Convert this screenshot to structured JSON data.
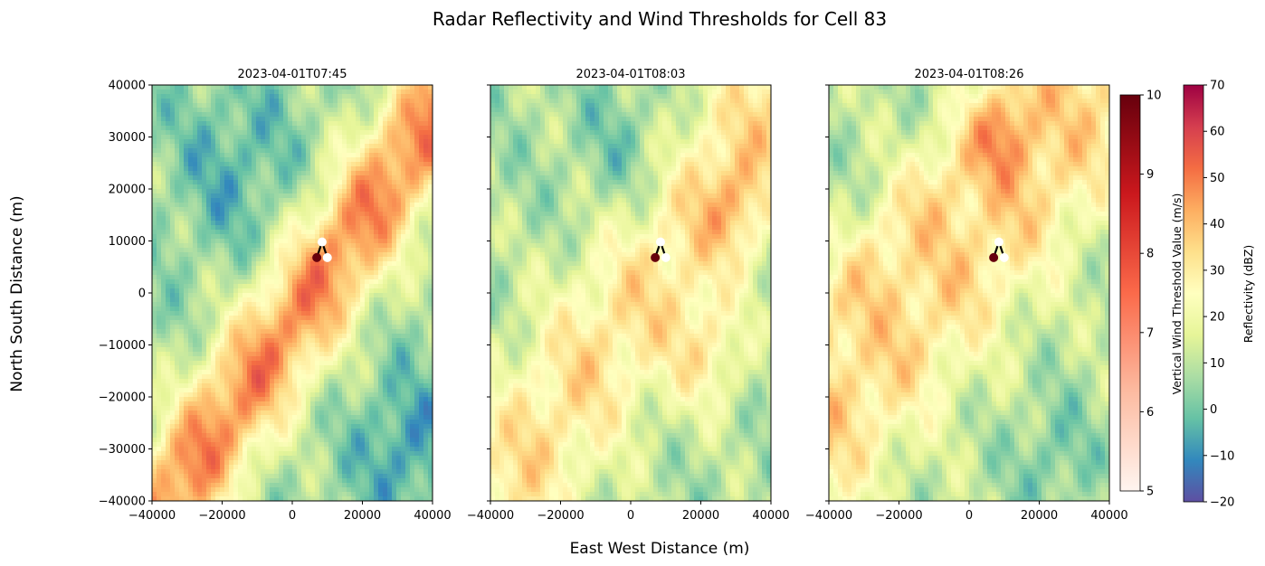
{
  "figure": {
    "title": "Radar Reflectivity and Wind Thresholds for Cell 83",
    "xlabel": "East West Distance (m)",
    "ylabel": "North South Distance (m)"
  },
  "chart_data": {
    "type": "heatmap",
    "xlim": [
      -40000,
      40000
    ],
    "ylim": [
      -40000,
      40000
    ],
    "x_ticks": [
      -40000,
      -20000,
      0,
      20000,
      40000
    ],
    "x_tick_labels": [
      "−40000",
      "−20000",
      "0",
      "20000",
      "40000"
    ],
    "y_ticks": [
      40000,
      30000,
      20000,
      10000,
      0,
      -10000,
      -20000,
      -30000,
      -40000
    ],
    "y_tick_labels": [
      "40000",
      "30000",
      "20000",
      "10000",
      "0",
      "−10000",
      "−20000",
      "−30000",
      "−40000"
    ],
    "panels": [
      {
        "title": "2023-04-01T07:45",
        "track": [
          {
            "x": 7000,
            "y": 6800
          },
          {
            "x": 8500,
            "y": 9800
          },
          {
            "x": 10000,
            "y": 6800
          }
        ],
        "threshold_value": 10
      },
      {
        "title": "2023-04-01T08:03",
        "track": [
          {
            "x": 7000,
            "y": 6800
          },
          {
            "x": 8500,
            "y": 9800
          },
          {
            "x": 10000,
            "y": 6800
          }
        ],
        "threshold_value": 10
      },
      {
        "title": "2023-04-01T08:26",
        "track": [
          {
            "x": 7000,
            "y": 6800
          },
          {
            "x": 8500,
            "y": 9800
          },
          {
            "x": 10000,
            "y": 6800
          }
        ],
        "threshold_value": 10
      }
    ],
    "wind_colorbar": {
      "label": "Vertical Wind Threshold Value (m/s)",
      "range": [
        5,
        10
      ],
      "ticks": [
        "5",
        "6",
        "7",
        "8",
        "9",
        "10"
      ],
      "colormap": "Reds",
      "colors": [
        "#fff5f0",
        "#fcbba1",
        "#fb6a4a",
        "#cb181d",
        "#67000d"
      ]
    },
    "reflectivity_colorbar": {
      "label": "Reflectivity (dBZ)",
      "range": [
        -20,
        70
      ],
      "ticks": [
        "−20",
        "−10",
        "0",
        "10",
        "20",
        "30",
        "40",
        "50",
        "60",
        "70"
      ],
      "colormap": "Spectral_r",
      "colors": [
        "#5e4fa2",
        "#3288bd",
        "#66c2a5",
        "#abdda4",
        "#e6f598",
        "#ffffbf",
        "#fee08b",
        "#fdae61",
        "#f46d43",
        "#d53e4f",
        "#9e0142"
      ]
    }
  }
}
